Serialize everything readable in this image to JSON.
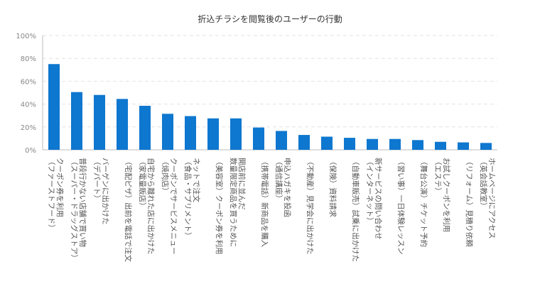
{
  "chart_data": {
    "type": "bar",
    "title": "折込チラシを閲覧後のユーザーの行動",
    "xlabel": "",
    "ylabel": "",
    "ylim": [
      0,
      100
    ],
    "yticks": [
      "0%",
      "20%",
      "40%",
      "60%",
      "80%",
      "100%"
    ],
    "yticks_values": [
      0,
      20,
      40,
      60,
      80,
      100
    ],
    "grid": true,
    "legend": "none",
    "bar_color": "#0e77cf",
    "categories": [
      [
        "（ファーストフード）",
        "クーポン券を利用"
      ],
      [
        "（スーパー・ドラッグストア）",
        "普段行かない店舗で買い物"
      ],
      [
        "（デパート）",
        "バーゲンに出かけた"
      ],
      [
        "（宅配ピザ）出前を電話で注文"
      ],
      [
        "（家電量販店）",
        "自宅から離れた店に出かけた"
      ],
      [
        "（焼肉店）",
        "クーポンでサービスメニュー"
      ],
      [
        "（食品・サプリメント）",
        "ネットで注文"
      ],
      [
        "（美容室）クーポン券を利用"
      ],
      [
        "数量限定商品を買うために",
        "開店前に並んだ"
      ],
      [
        "（携帯電話）新商品を購入"
      ],
      [
        "（通信講座）",
        "申込ハガキを投函"
      ],
      [
        "（不動産）見学会に出かけた"
      ],
      [
        "（保険）資料請求"
      ],
      [
        "（自動車販売）試乗に出かけた"
      ],
      [
        "（インターネット）",
        "新サービスの問い合わせ"
      ],
      [
        "（習い事）一日体験レッスン"
      ],
      [
        "（舞台公演）チケット予約"
      ],
      [
        "（エステ）",
        "お試しクーポンを利用"
      ],
      [
        "（リフォーム）見積り依頼"
      ],
      [
        "（英会話教室）",
        "ホームページにアクセス"
      ]
    ],
    "values": [
      75,
      50.5,
      48,
      44.5,
      38.5,
      31.5,
      29.5,
      27.5,
      27.5,
      19.5,
      16.5,
      13,
      11.5,
      10.5,
      9.5,
      9.5,
      8.5,
      7,
      6.5,
      6
    ]
  }
}
